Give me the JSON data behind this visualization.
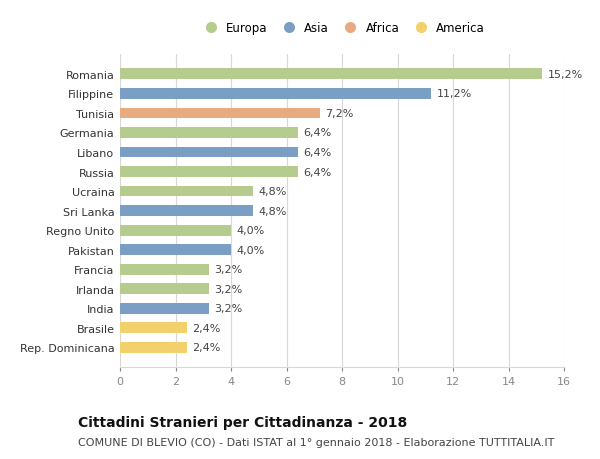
{
  "countries": [
    "Romania",
    "Filippine",
    "Tunisia",
    "Germania",
    "Libano",
    "Russia",
    "Ucraina",
    "Sri Lanka",
    "Regno Unito",
    "Pakistan",
    "Francia",
    "Irlanda",
    "India",
    "Brasile",
    "Rep. Dominicana"
  ],
  "values": [
    15.2,
    11.2,
    7.2,
    6.4,
    6.4,
    6.4,
    4.8,
    4.8,
    4.0,
    4.0,
    3.2,
    3.2,
    3.2,
    2.4,
    2.4
  ],
  "continents": [
    "Europa",
    "Asia",
    "Africa",
    "Europa",
    "Asia",
    "Europa",
    "Europa",
    "Asia",
    "Europa",
    "Asia",
    "Europa",
    "Europa",
    "Asia",
    "America",
    "America"
  ],
  "colors": {
    "Europa": "#b5cc8e",
    "Asia": "#7b9fc4",
    "Africa": "#e8aa80",
    "America": "#f2d06b"
  },
  "xlim": [
    0,
    16
  ],
  "xticks": [
    0,
    2,
    4,
    6,
    8,
    10,
    12,
    14,
    16
  ],
  "title": "Cittadini Stranieri per Cittadinanza - 2018",
  "subtitle": "COMUNE DI BLEVIO (CO) - Dati ISTAT al 1° gennaio 2018 - Elaborazione TUTTITALIA.IT",
  "title_fontsize": 10,
  "subtitle_fontsize": 8,
  "label_fontsize": 8,
  "tick_fontsize": 8,
  "bar_height": 0.55,
  "background_color": "#ffffff",
  "grid_color": "#d8d8d8",
  "legend_order": [
    "Europa",
    "Asia",
    "Africa",
    "America"
  ]
}
